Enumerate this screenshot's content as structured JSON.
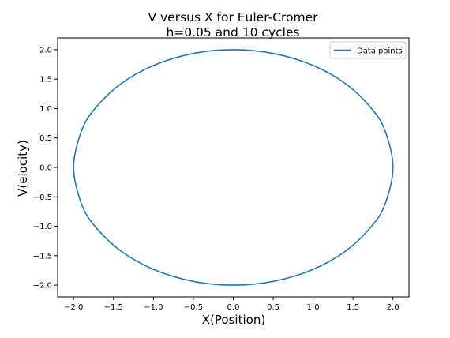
{
  "chart_data": {
    "type": "line",
    "title": "V versus X for Euler-Cromer",
    "subtitle": "h=0.05 and 10 cycles",
    "xlabel": "X(Position)",
    "ylabel": "V(elocity)",
    "xlim": [
      -2.2,
      2.2
    ],
    "ylim": [
      -2.2,
      2.2
    ],
    "xticks": [
      -2.0,
      -1.5,
      -1.0,
      -0.5,
      0.0,
      0.5,
      1.0,
      1.5,
      2.0
    ],
    "yticks": [
      -2.0,
      -1.5,
      -1.0,
      -0.5,
      0.0,
      0.5,
      1.0,
      1.5,
      2.0
    ],
    "xtick_labels": [
      "−2.0",
      "−1.5",
      "−1.0",
      "−0.5",
      "0.0",
      "0.5",
      "1.0",
      "1.5",
      "2.0"
    ],
    "ytick_labels": [
      "−2.0",
      "−1.5",
      "−1.0",
      "−0.5",
      "0.0",
      "0.5",
      "1.0",
      "1.5",
      "2.0"
    ],
    "grid": false,
    "legend_position": "top-right",
    "series": [
      {
        "name": "Data points",
        "color": "#1f77b4",
        "x": [
          2.0,
          1.9,
          1.732,
          1.414,
          1.0,
          0.5,
          0.0,
          -0.5,
          -1.0,
          -1.414,
          -1.732,
          -1.9,
          -2.0,
          -1.9,
          -1.732,
          -1.414,
          -1.0,
          -0.5,
          0.0,
          0.5,
          1.0,
          1.414,
          1.732,
          1.9,
          2.0
        ],
        "y": [
          0.0,
          -0.624,
          -1.0,
          -1.414,
          -1.732,
          -1.936,
          -2.0,
          -1.936,
          -1.732,
          -1.414,
          -1.0,
          -0.624,
          0.0,
          0.624,
          1.0,
          1.414,
          1.732,
          1.936,
          2.0,
          1.936,
          1.732,
          1.414,
          1.0,
          0.624,
          0.0
        ]
      }
    ]
  }
}
